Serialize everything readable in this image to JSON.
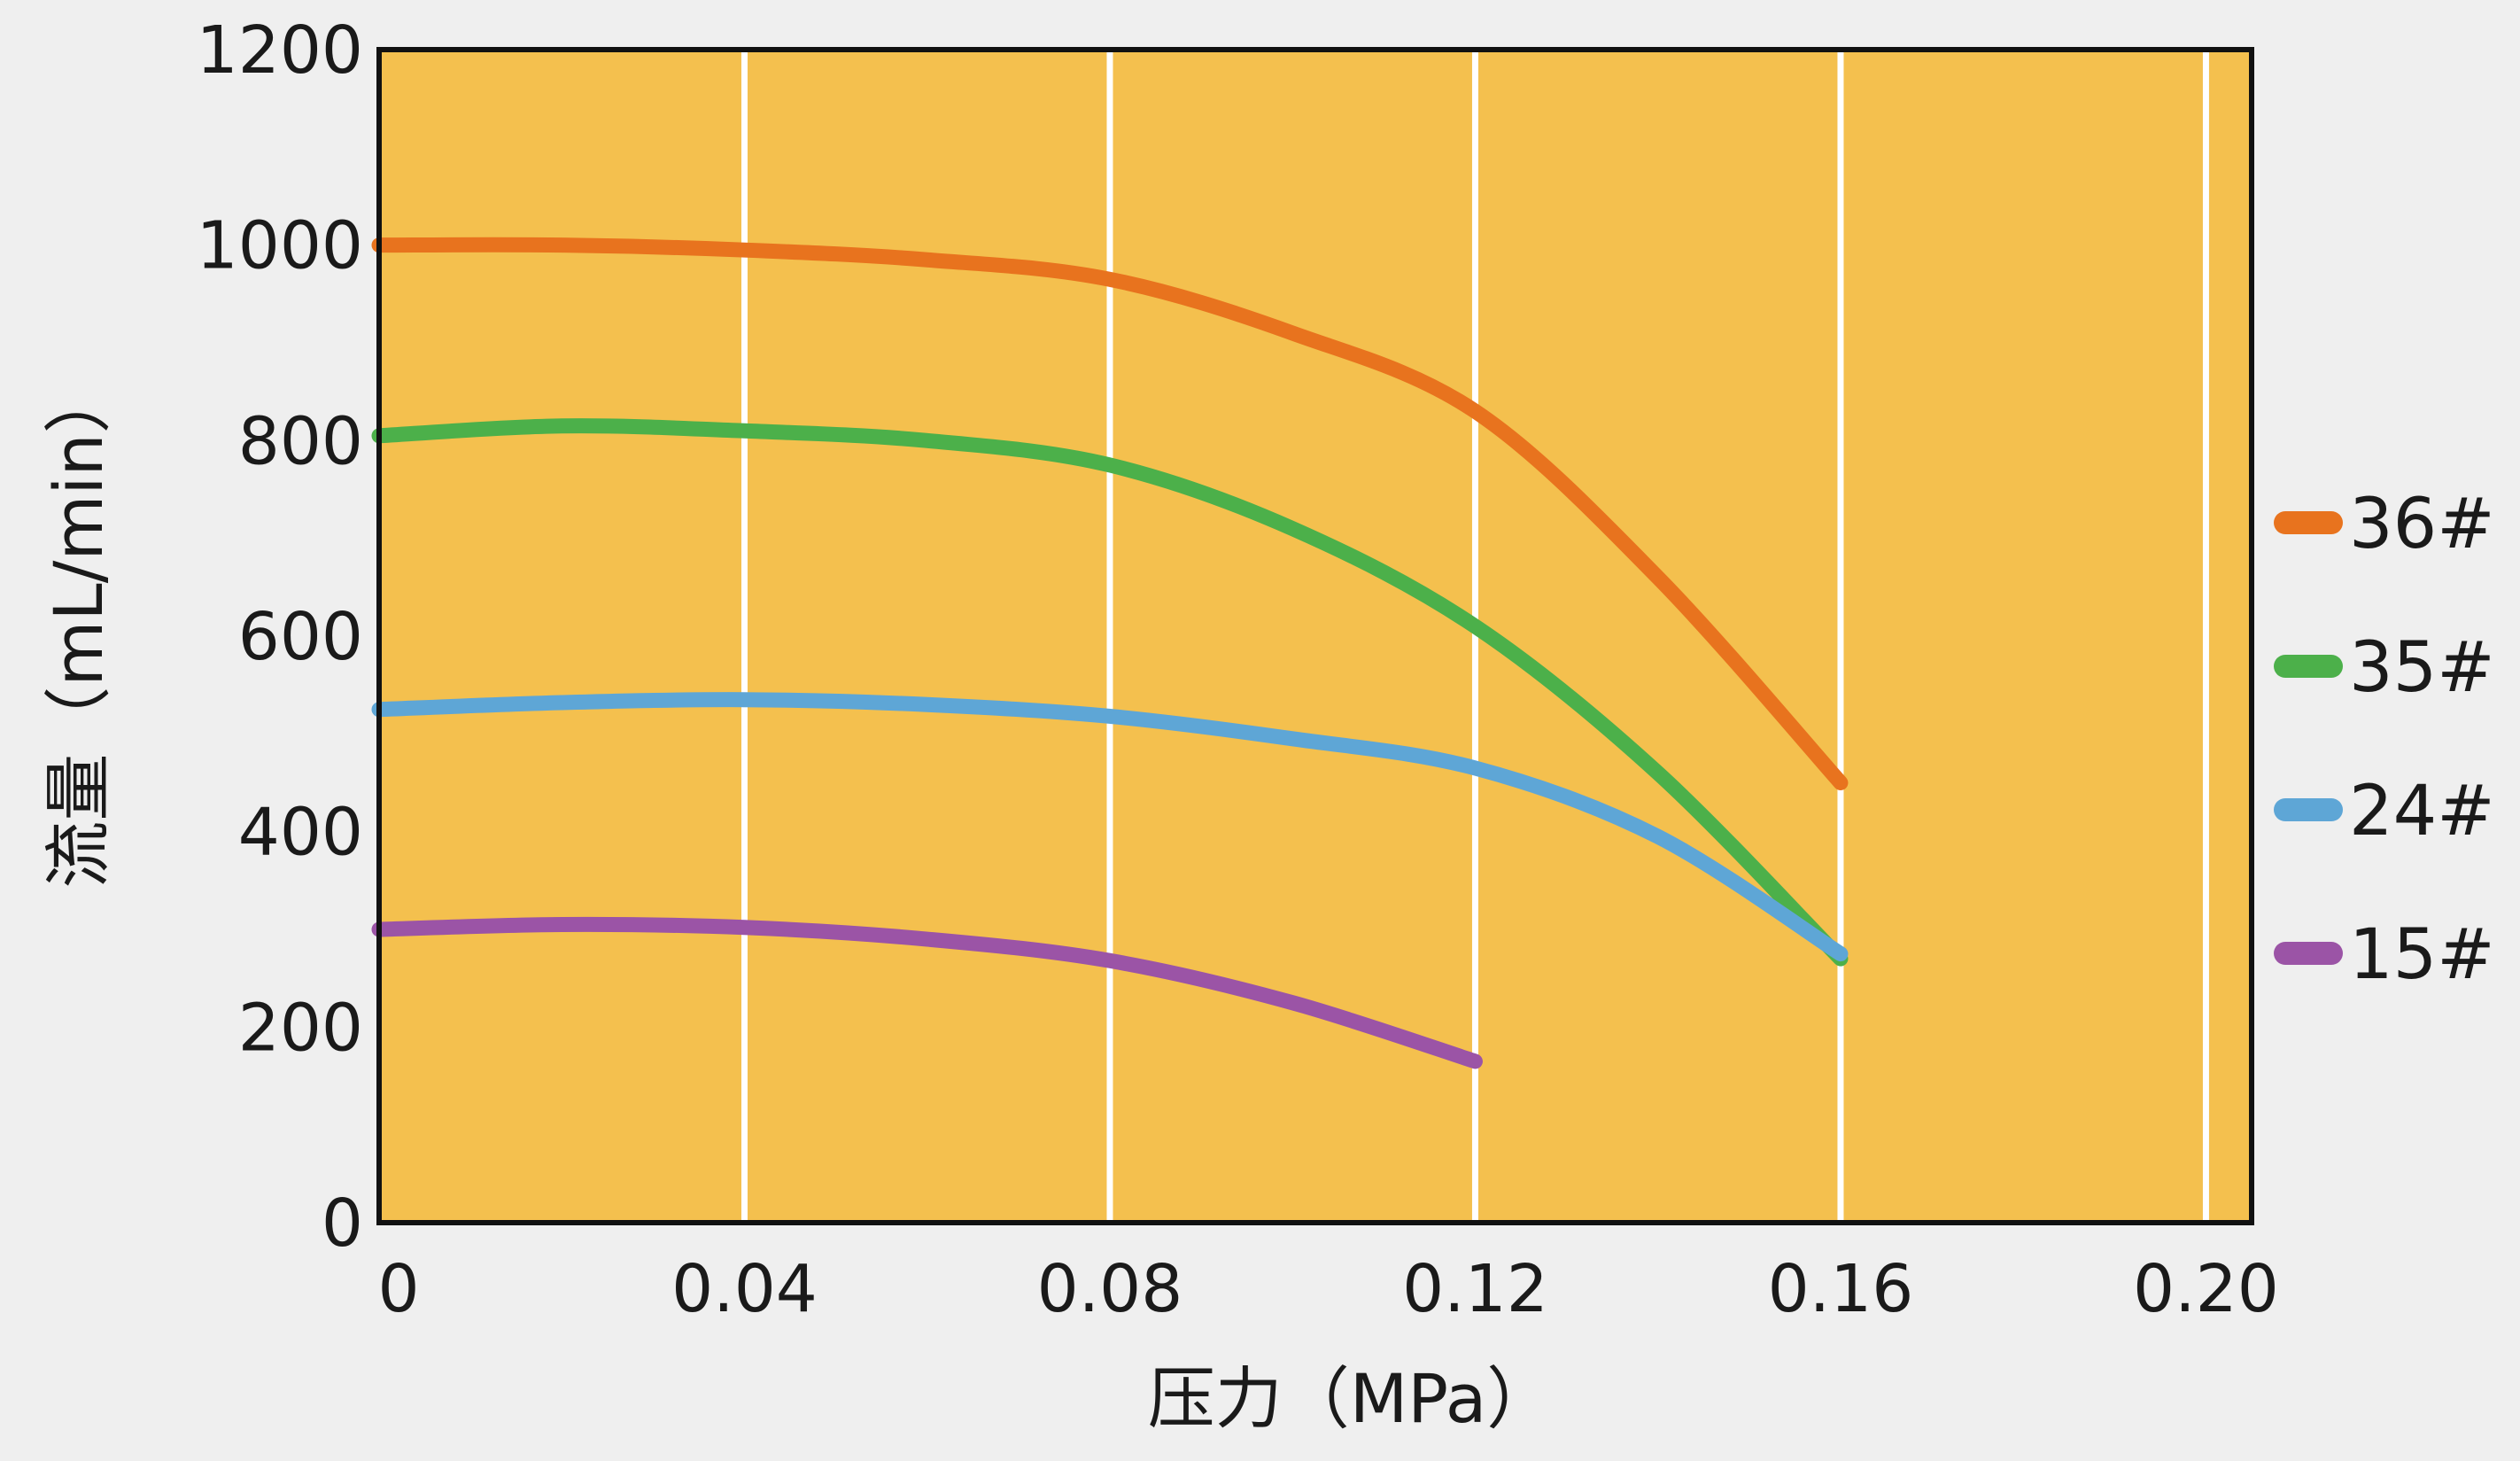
{
  "chart_data": {
    "type": "line",
    "title": "",
    "xlabel": "压力（MPa）",
    "ylabel": "流量（mL/min）",
    "xlim": [
      0,
      0.205
    ],
    "ylim": [
      0,
      1200
    ],
    "xticks": [
      0,
      0.04,
      0.08,
      0.12,
      0.16,
      0.2
    ],
    "xtick_labels": [
      "0",
      "0.04",
      "0.08",
      "0.12",
      "0.16",
      "0.20"
    ],
    "yticks": [
      0,
      200,
      400,
      600,
      800,
      1000,
      1200
    ],
    "ytick_labels": [
      "0",
      "200",
      "400",
      "600",
      "800",
      "1000",
      "1200"
    ],
    "grid": {
      "vertical": true,
      "horizontal": false,
      "color": "#ffffff"
    },
    "plot_background": "#f4c04e",
    "legend_position": "right",
    "series": [
      {
        "name": "36#",
        "color": "#e8731e",
        "x": [
          0,
          0.02,
          0.04,
          0.06,
          0.08,
          0.1,
          0.12,
          0.14,
          0.16
        ],
        "y": [
          1000,
          1000,
          995,
          985,
          965,
          910,
          830,
          660,
          450
        ]
      },
      {
        "name": "35#",
        "color": "#4cb04a",
        "x": [
          0,
          0.02,
          0.04,
          0.06,
          0.08,
          0.1,
          0.12,
          0.14,
          0.16
        ],
        "y": [
          805,
          815,
          810,
          800,
          775,
          710,
          610,
          460,
          270
        ]
      },
      {
        "name": "24#",
        "color": "#5ea6d6",
        "x": [
          0,
          0.02,
          0.04,
          0.06,
          0.08,
          0.1,
          0.12,
          0.14,
          0.16
        ],
        "y": [
          525,
          532,
          535,
          530,
          518,
          495,
          465,
          395,
          275
        ]
      },
      {
        "name": "15#",
        "color": "#9b54a6",
        "x": [
          0,
          0.02,
          0.04,
          0.06,
          0.08,
          0.1,
          0.12
        ],
        "y": [
          300,
          305,
          302,
          290,
          268,
          225,
          165
        ]
      }
    ]
  }
}
